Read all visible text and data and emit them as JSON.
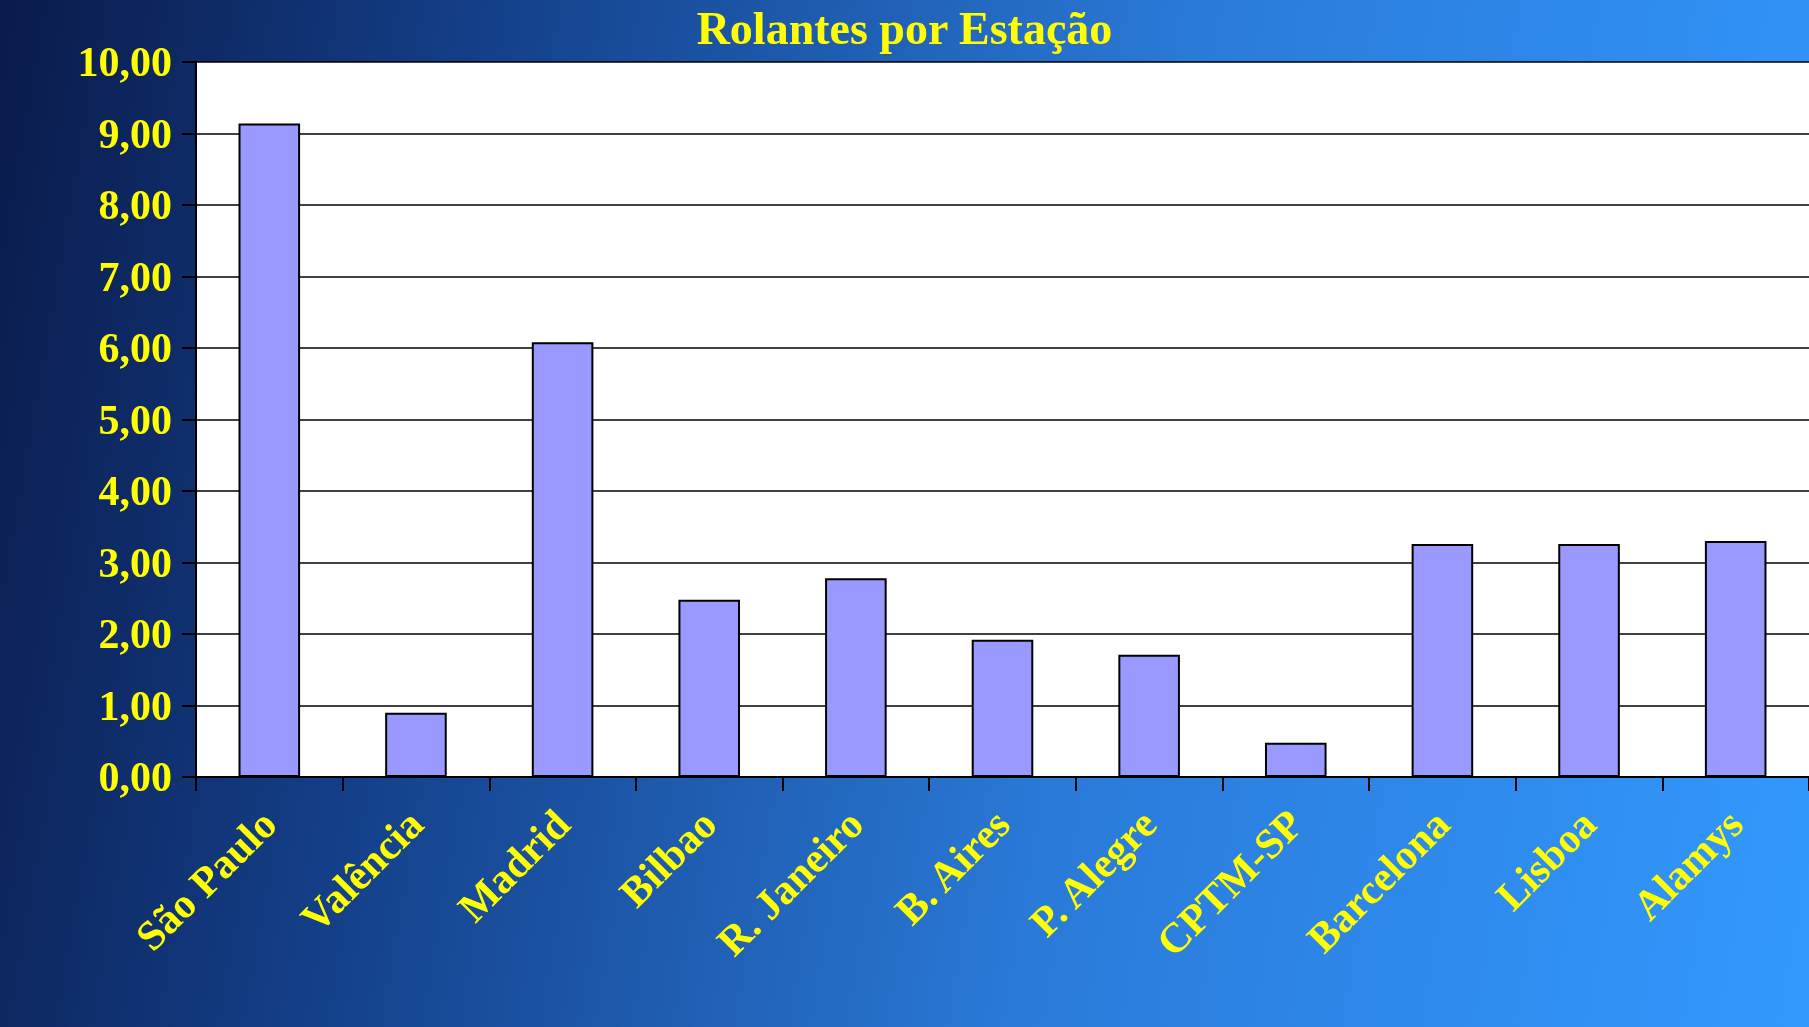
{
  "chart_data": {
    "type": "bar",
    "title": "Rolantes por Estação",
    "categories": [
      "São Paulo",
      "Valência",
      "Madrid",
      "Bilbao",
      "R. Janeiro",
      "B. Aires",
      "P. Alegre",
      "CPTM-SP",
      "Barcelona",
      "Lisboa",
      "Alamys"
    ],
    "values": [
      9.14,
      0.9,
      6.08,
      2.48,
      2.78,
      1.92,
      1.71,
      0.48,
      3.26,
      3.26,
      3.3
    ],
    "color": "#9999ff",
    "ylim": [
      0,
      10
    ],
    "yticks": [
      {
        "value": 0,
        "label": "0,00"
      },
      {
        "value": 1,
        "label": "1,00"
      },
      {
        "value": 2,
        "label": "2,00"
      },
      {
        "value": 3,
        "label": "3,00"
      },
      {
        "value": 4,
        "label": "4,00"
      },
      {
        "value": 5,
        "label": "5,00"
      },
      {
        "value": 6,
        "label": "6,00"
      },
      {
        "value": 7,
        "label": "7,00"
      },
      {
        "value": 8,
        "label": "8,00"
      },
      {
        "value": 9,
        "label": "9,00"
      },
      {
        "value": 10,
        "label": "10,00"
      }
    ],
    "grid": "y"
  }
}
